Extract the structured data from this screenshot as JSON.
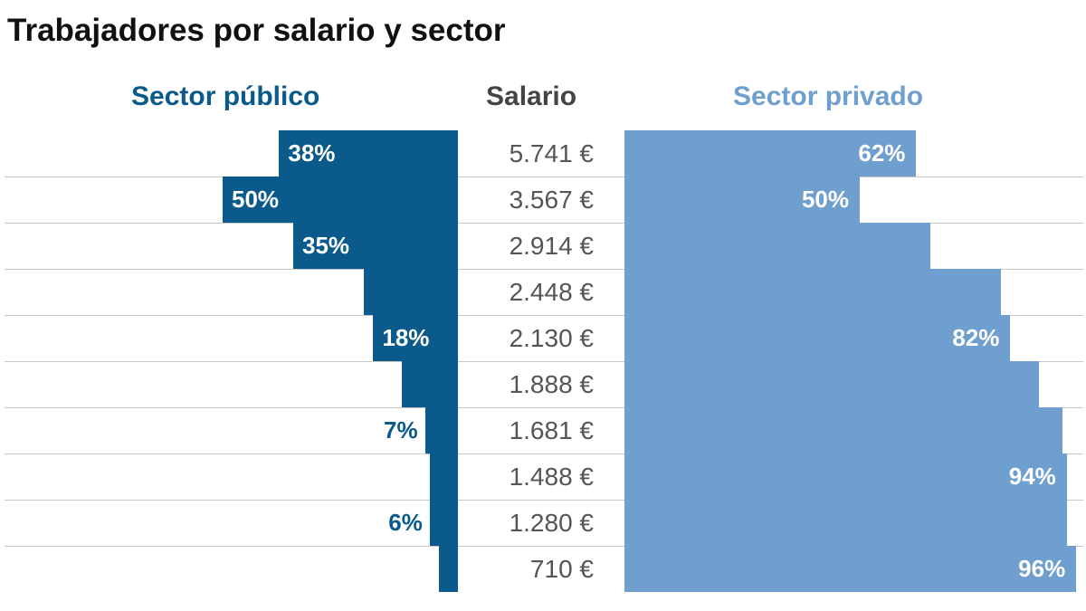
{
  "chart_data": {
    "type": "bar",
    "title": "Trabajadores por salario y sector",
    "headers": {
      "public": "Sector público",
      "salary": "Salario",
      "private": "Sector privado"
    },
    "categories": [
      "5.741 €",
      "3.567 €",
      "2.914 €",
      "2.448 €",
      "2.130 €",
      "1.888 €",
      "1.681 €",
      "1.488 €",
      "1.280 €",
      "710 €"
    ],
    "series": [
      {
        "name": "Sector público",
        "color": "#0b5a8c",
        "values": [
          38,
          50,
          35,
          20,
          18,
          12,
          7,
          6,
          6,
          4
        ],
        "labels": [
          "38%",
          "50%",
          "35%",
          null,
          "18%",
          null,
          "7%",
          null,
          "6%",
          null
        ]
      },
      {
        "name": "Sector privado",
        "color": "#6e9fcf",
        "values": [
          62,
          50,
          65,
          80,
          82,
          88,
          93,
          94,
          94,
          96
        ],
        "labels": [
          "62%",
          "50%",
          null,
          null,
          "82%",
          null,
          null,
          "94%",
          null,
          "96%"
        ]
      }
    ],
    "xlim": [
      0,
      100
    ],
    "grid": true
  }
}
